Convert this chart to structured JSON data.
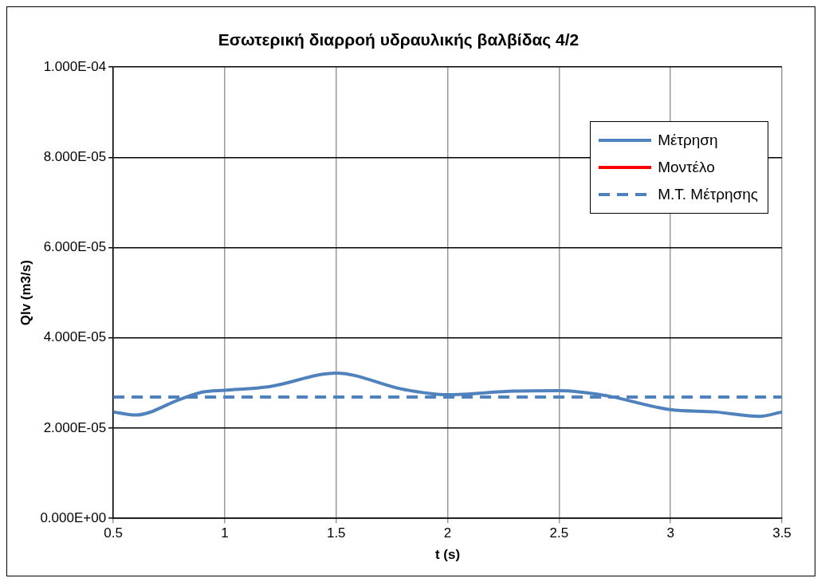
{
  "chart_data": {
    "type": "line",
    "title": "Εσωτερική διαρροή υδραυλικής βαλβίδας 4/2",
    "xlabel": "t (s)",
    "ylabel": "Qlv (m3/s)",
    "x": [
      0.5,
      0.6,
      0.8,
      0.9,
      1.0,
      1.2,
      1.5,
      1.8,
      2.0,
      2.3,
      2.5,
      2.7,
      3.0,
      3.2,
      3.4,
      3.5
    ],
    "series": [
      {
        "name": "Μέτρηση",
        "color": "#4f81bd",
        "line_style": "solid",
        "values": [
          2.36e-05,
          2.29e-05,
          2.64e-05,
          2.8e-05,
          2.84e-05,
          2.92e-05,
          3.22e-05,
          2.86e-05,
          2.74e-05,
          2.82e-05,
          2.83e-05,
          2.73e-05,
          2.41e-05,
          2.36e-05,
          2.26e-05,
          2.36e-05
        ]
      },
      {
        "name": "Μοντέλο",
        "color": "#ff0000",
        "line_style": "solid",
        "values": [
          null,
          null,
          null,
          null,
          null,
          null,
          null,
          null,
          null,
          null,
          null,
          null,
          null,
          null,
          null,
          null
        ]
      },
      {
        "name": "Μ.Τ. Μέτρησης",
        "color": "#4f81bd",
        "line_style": "dashed",
        "x": [
          0.5,
          3.5
        ],
        "values": [
          2.69e-05,
          2.69e-05
        ]
      }
    ],
    "xlim": [
      0.5,
      3.5
    ],
    "xticks": [
      0.5,
      1,
      1.5,
      2,
      2.5,
      3,
      3.5
    ],
    "ylim": [
      0,
      0.0001
    ],
    "yticks": [
      {
        "value": 0,
        "label": "0.000E+00"
      },
      {
        "value": 2e-05,
        "label": "2.000E-05"
      },
      {
        "value": 4e-05,
        "label": "4.000E-05"
      },
      {
        "value": 6e-05,
        "label": "6.000E-05"
      },
      {
        "value": 8e-05,
        "label": "8.000E-05"
      },
      {
        "value": 0.0001,
        "label": "1.000E-04"
      }
    ],
    "grid": true,
    "legend": "top right",
    "marker": "none"
  }
}
